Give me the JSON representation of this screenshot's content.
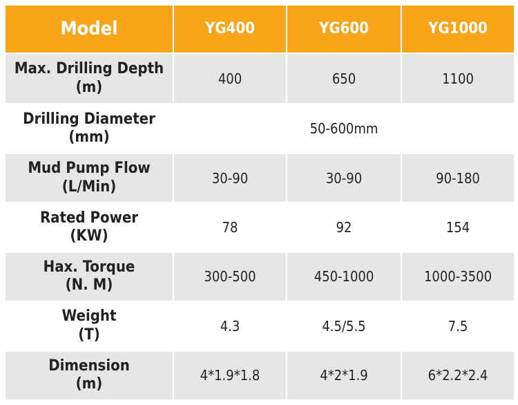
{
  "header": {
    "model_label": "Model",
    "columns": [
      "YG400",
      "YG600",
      "YG1000"
    ]
  },
  "rows": [
    {
      "label_line1": "Max. Drilling Depth",
      "label_line2": "(m)",
      "values": [
        "400",
        "650",
        "1100"
      ]
    },
    {
      "label_line1": "Drilling Diameter",
      "label_line2": "(mm)",
      "merged_value": "50-600mm"
    },
    {
      "label_line1": "Mud Pump Flow",
      "label_line2": "(L/Min)",
      "values": [
        "30-90",
        "30-90",
        "90-180"
      ]
    },
    {
      "label_line1": "Rated Power",
      "label_line2": "(KW)",
      "values": [
        "78",
        "92",
        "154"
      ]
    },
    {
      "label_line1": "Hax. Torque",
      "label_line2": "(N. M)",
      "values": [
        "300-500",
        "450-1000",
        "1000-3500"
      ]
    },
    {
      "label_line1": "Weight",
      "label_line2": "(T)",
      "values": [
        "4.3",
        "4.5/5.5",
        "7.5"
      ]
    },
    {
      "label_line1": "Dimension",
      "label_line2": "(m)",
      "values": [
        "4*1.9*1.8",
        "4*2*1.9",
        "6*2.2*2.4"
      ]
    }
  ],
  "colors": {
    "header_bg": "#f9a51a",
    "header_text": "#ffffff",
    "row_shaded": "#e6e6e6",
    "row_plain": "#ffffff"
  }
}
